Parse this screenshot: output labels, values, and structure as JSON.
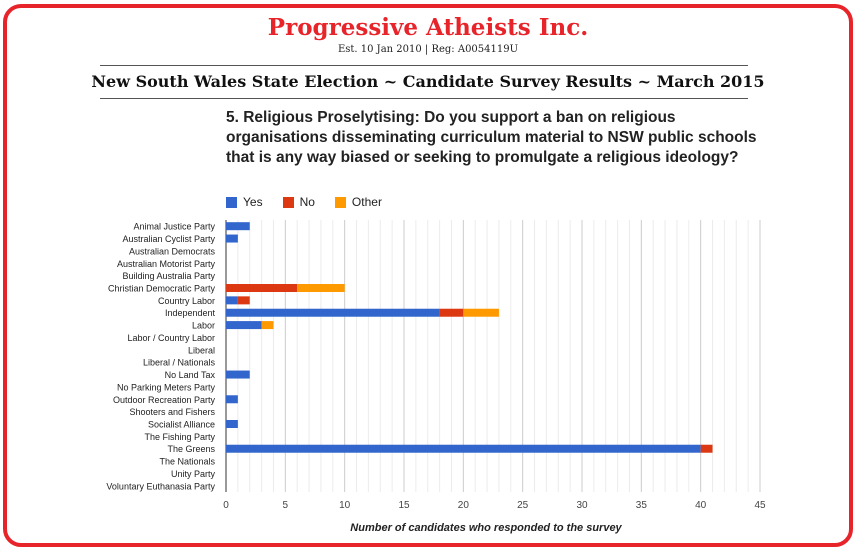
{
  "header": {
    "org_name": "Progressive Atheists Inc.",
    "org_details": "Est. 10 Jan 2010 | Reg: A0054119U",
    "banner": "New South Wales State Election ~ Candidate Survey Results ~ March 2015"
  },
  "colors": {
    "frame": "#e8242b",
    "yes": "#3366cc",
    "no": "#dc3912",
    "other": "#ff9900",
    "grid": "#cccccc"
  },
  "chart_data": {
    "type": "bar",
    "orientation": "horizontal",
    "stacked": true,
    "title": "5. Religious Proselytising: Do you support a ban on religious organisations disseminating curriculum material to NSW public schools that is any way biased or seeking to promulgate a religious ideology?",
    "xlabel": "Number of candidates who responded to the survey",
    "ylabel": "",
    "xlim": [
      0,
      45
    ],
    "xticks": [
      0,
      5,
      10,
      15,
      20,
      25,
      30,
      35,
      40,
      45
    ],
    "grid": true,
    "legend_position": "top",
    "categories": [
      "Animal Justice Party",
      "Australian Cyclist Party",
      "Australian Democrats",
      "Australian Motorist Party",
      "Building Australia Party",
      "Christian Democratic Party",
      "Country Labor",
      "Independent",
      "Labor",
      "Labor / Country Labor",
      "Liberal",
      "Liberal / Nationals",
      "No Land Tax",
      "No Parking Meters Party",
      "Outdoor Recreation Party",
      "Shooters and Fishers",
      "Socialist Alliance",
      "The Fishing Party",
      "The Greens",
      "The Nationals",
      "Unity Party",
      "Voluntary Euthanasia Party"
    ],
    "series": [
      {
        "name": "Yes",
        "color": "#3366cc",
        "values": [
          2,
          1,
          0,
          0,
          0,
          0,
          1,
          18,
          3,
          0,
          0,
          0,
          2,
          0,
          1,
          0,
          1,
          0,
          40,
          0,
          0,
          0
        ]
      },
      {
        "name": "No",
        "color": "#dc3912",
        "values": [
          0,
          0,
          0,
          0,
          0,
          6,
          1,
          2,
          0,
          0,
          0,
          0,
          0,
          0,
          0,
          0,
          0,
          0,
          1,
          0,
          0,
          0
        ]
      },
      {
        "name": "Other",
        "color": "#ff9900",
        "values": [
          0,
          0,
          0,
          0,
          0,
          4,
          0,
          3,
          1,
          0,
          0,
          0,
          0,
          0,
          0,
          0,
          0,
          0,
          0,
          0,
          0,
          0
        ]
      }
    ]
  }
}
